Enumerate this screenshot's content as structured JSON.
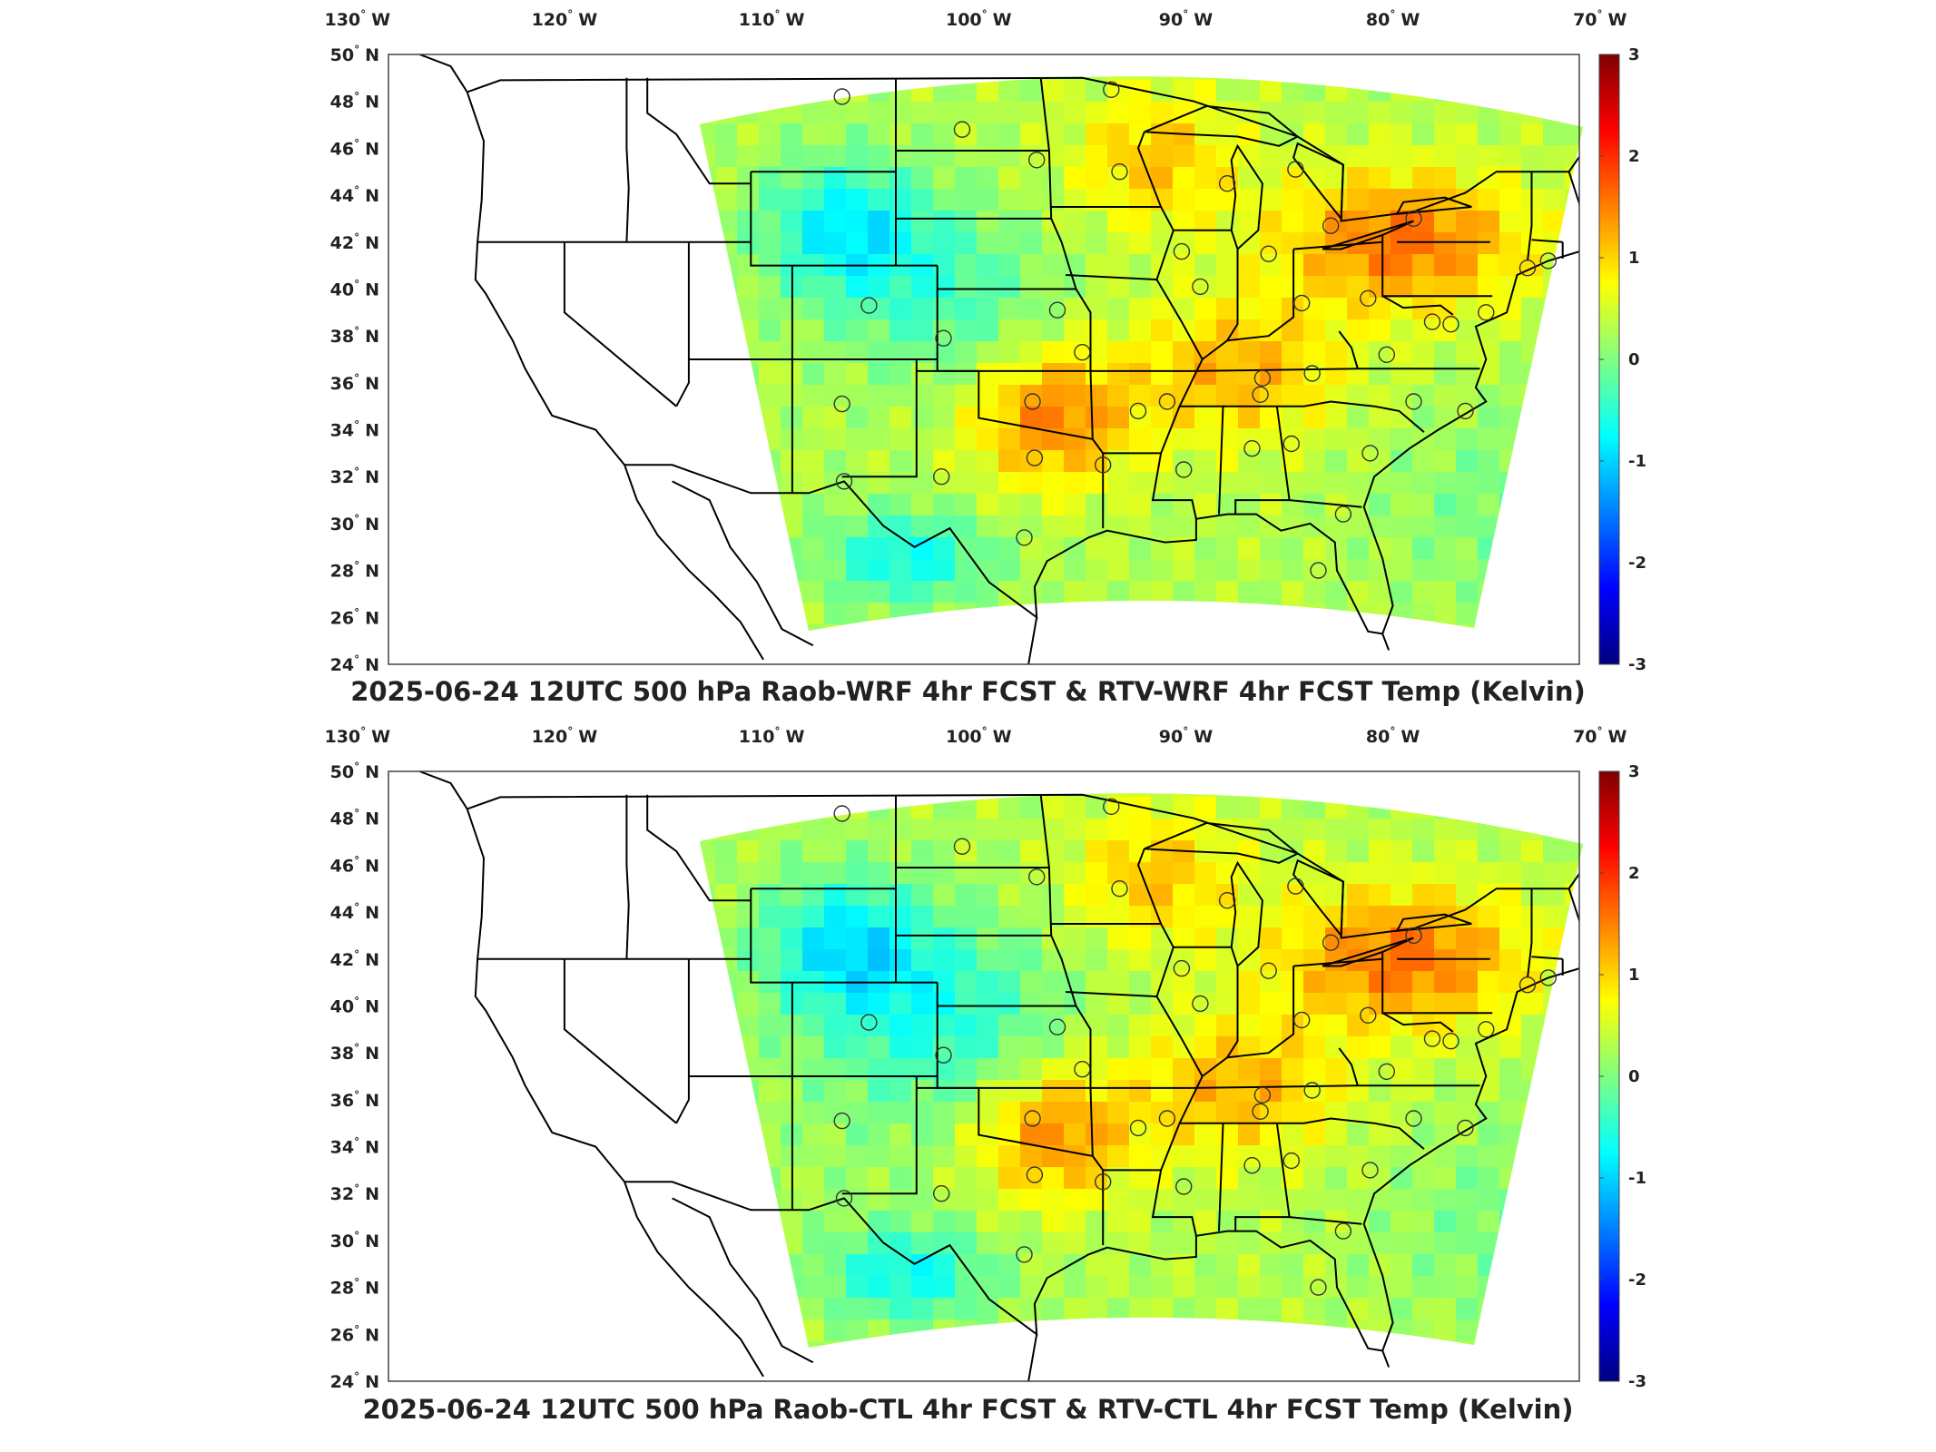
{
  "panels": [
    {
      "title": "2025-06-24 12UTC 500 hPa Raob-WRF 4hr FCST & RTV-WRF 4hr FCST Temp (Kelvin)",
      "variant": "wrf"
    },
    {
      "title": "2025-06-24 12UTC 500 hPa Raob-CTL 4hr FCST & RTV-CTL 4hr FCST Temp (Kelvin)",
      "variant": "ctl"
    }
  ],
  "map": {
    "lon_ticks": [
      {
        "value": -130,
        "deg": "130",
        "hem": "W"
      },
      {
        "value": -120,
        "deg": "120",
        "hem": "W"
      },
      {
        "value": -110,
        "deg": "110",
        "hem": "W"
      },
      {
        "value": -100,
        "deg": "100",
        "hem": "W"
      },
      {
        "value": -90,
        "deg": "90",
        "hem": "W"
      },
      {
        "value": -80,
        "deg": "80",
        "hem": "W"
      },
      {
        "value": -70,
        "deg": "70",
        "hem": "W"
      }
    ],
    "lat_ticks": [
      {
        "value": 50,
        "deg": "50",
        "hem": "N"
      },
      {
        "value": 48,
        "deg": "48",
        "hem": "N"
      },
      {
        "value": 46,
        "deg": "46",
        "hem": "N"
      },
      {
        "value": 44,
        "deg": "44",
        "hem": "N"
      },
      {
        "value": 42,
        "deg": "42",
        "hem": "N"
      },
      {
        "value": 40,
        "deg": "40",
        "hem": "N"
      },
      {
        "value": 38,
        "deg": "38",
        "hem": "N"
      },
      {
        "value": 36,
        "deg": "36",
        "hem": "N"
      },
      {
        "value": 34,
        "deg": "34",
        "hem": "N"
      },
      {
        "value": 32,
        "deg": "32",
        "hem": "N"
      },
      {
        "value": 30,
        "deg": "30",
        "hem": "N"
      },
      {
        "value": 28,
        "deg": "28",
        "hem": "N"
      },
      {
        "value": 26,
        "deg": "26",
        "hem": "N"
      },
      {
        "value": 24,
        "deg": "24",
        "hem": "N"
      }
    ]
  },
  "colorbar": {
    "ticks": [
      "3",
      "2",
      "1",
      "0",
      "-1",
      "-2",
      "-3"
    ],
    "colors": [
      "#7f0000",
      "#ff0000",
      "#ff8000",
      "#ffff00",
      "#80ff80",
      "#00ffff",
      "#0080ff",
      "#0000ff",
      "#00007f"
    ]
  }
}
